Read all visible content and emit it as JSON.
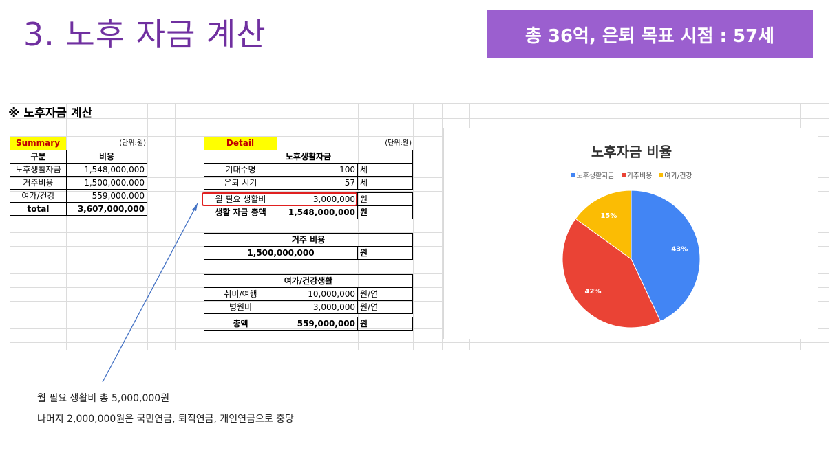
{
  "slide": {
    "title": "3. 노후 자금 계산",
    "badge": "총 36억, 은퇴 목표 시점 : 57세",
    "accent_color": "#7030a0",
    "badge_color": "#9b5fcf"
  },
  "sheet": {
    "title": "※ 노후자금 계산",
    "summary": {
      "label": "Summary",
      "unit": "(단위:원)",
      "headers": [
        "구분",
        "비용"
      ],
      "rows": [
        {
          "name": "노후생활자금",
          "value": "1,548,000,000"
        },
        {
          "name": "거주비용",
          "value": "1,500,000,000"
        },
        {
          "name": "여가/건강",
          "value": "559,000,000"
        },
        {
          "name": "total",
          "value": "3,607,000,000"
        }
      ]
    },
    "detail": {
      "label": "Detail",
      "unit": "(단위:원)",
      "living": {
        "header": "노후생활자금",
        "rows": [
          {
            "name": "기대수명",
            "value": "100",
            "unit": "세"
          },
          {
            "name": "은퇴 시기",
            "value": "57",
            "unit": "세"
          },
          {
            "name": "월 필요 생활비",
            "value": "3,000,000",
            "unit": "원"
          },
          {
            "name": "생활 자금 총액",
            "value": "1,548,000,000",
            "unit": "원"
          }
        ]
      },
      "housing": {
        "header": "거주 비용",
        "value": "1,500,000,000",
        "unit": "원"
      },
      "leisure": {
        "header": "여가/건강생활",
        "rows": [
          {
            "name": "취미/여행",
            "value": "10,000,000",
            "unit": "원/연"
          },
          {
            "name": "병원비",
            "value": "3,000,000",
            "unit": "원/연"
          },
          {
            "name": "총액",
            "value": "559,000,000",
            "unit": "원"
          }
        ]
      }
    }
  },
  "chart_data": {
    "type": "pie",
    "title": "노후자금 비율",
    "legend_position": "top",
    "categories": [
      "노후생활자금",
      "거주비용",
      "여가/건강"
    ],
    "values": [
      43,
      42,
      15
    ],
    "labels": [
      "43%",
      "42%",
      "15%"
    ],
    "colors": [
      "#4285f4",
      "#ea4335",
      "#fbbc04"
    ]
  },
  "notes": {
    "line1": "월 필요 생활비 총 5,000,000원",
    "line2": "나머지 2,000,000원은  국민연금, 퇴직연금, 개인연금으로 충당"
  }
}
